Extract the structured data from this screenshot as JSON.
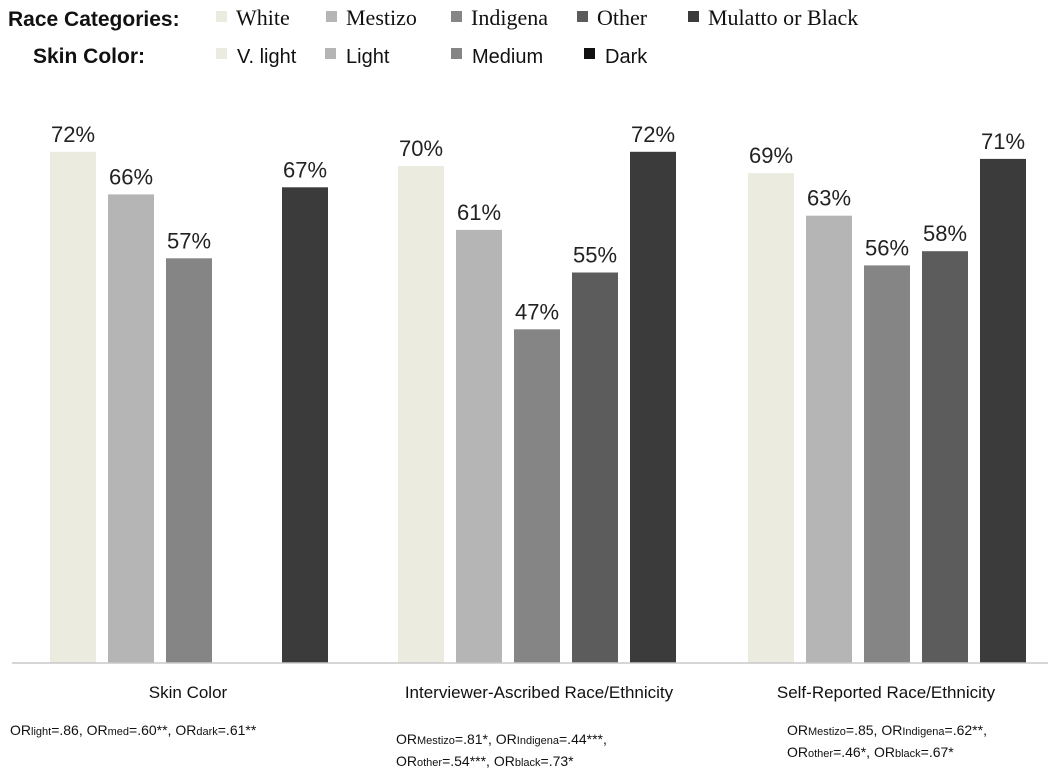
{
  "legend": {
    "race_title": "Race Categories:",
    "race_items": [
      {
        "label": "White",
        "color": "#ebebe0"
      },
      {
        "label": "Mestizo",
        "color": "#b5b5b5"
      },
      {
        "label": "Indigena",
        "color": "#858585"
      },
      {
        "label": "Other",
        "color": "#5c5c5c"
      },
      {
        "label": "Mulatto or Black",
        "color": "#3b3b3b"
      }
    ],
    "skin_title": "Skin Color:",
    "skin_items": [
      {
        "label": "V. light",
        "color": "#ebebe0"
      },
      {
        "label": "Light",
        "color": "#b5b5b5"
      },
      {
        "label": "Medium",
        "color": "#858585"
      },
      {
        "label": "Dark",
        "color": "#111111"
      }
    ]
  },
  "chart_data": {
    "type": "bar",
    "unit": "%",
    "ylim": [
      0,
      100
    ],
    "grid": false,
    "groups": [
      {
        "label": "Skin Color",
        "bars": [
          {
            "category": "V. light",
            "value": 72,
            "color": "#ebebe0"
          },
          {
            "category": "Light",
            "value": 66,
            "color": "#b5b5b5"
          },
          {
            "category": "Medium",
            "value": 57,
            "color": "#858585"
          },
          {
            "category": "Dark",
            "value": 67,
            "color": "#3b3b3b"
          }
        ],
        "note": [
          [
            {
              "t": "OR"
            },
            {
              "t": "light",
              "sub": true
            },
            {
              "t": "=.86, OR"
            },
            {
              "t": "med",
              "sub": true
            },
            {
              "t": "=.60**, OR"
            },
            {
              "t": "dark",
              "sub": true
            },
            {
              "t": "=.61**"
            }
          ]
        ]
      },
      {
        "label": "Interviewer-Ascribed Race/Ethnicity",
        "bars": [
          {
            "category": "White",
            "value": 70,
            "color": "#ebebe0"
          },
          {
            "category": "Mestizo",
            "value": 61,
            "color": "#b5b5b5"
          },
          {
            "category": "Indigena",
            "value": 47,
            "color": "#858585"
          },
          {
            "category": "Other",
            "value": 55,
            "color": "#5c5c5c"
          },
          {
            "category": "Mulatto or Black",
            "value": 72,
            "color": "#3b3b3b"
          }
        ],
        "note": [
          [
            {
              "t": "OR"
            },
            {
              "t": "Mestizo",
              "sub": true
            },
            {
              "t": "=.81*, OR"
            },
            {
              "t": "Indigena",
              "sub": true
            },
            {
              "t": "=.44***,"
            }
          ],
          [
            {
              "t": "OR"
            },
            {
              "t": "other",
              "sub": true
            },
            {
              "t": "=.54***, OR"
            },
            {
              "t": "black",
              "sub": true
            },
            {
              "t": "=.73*"
            }
          ]
        ]
      },
      {
        "label": "Self-Reported Race/Ethnicity",
        "bars": [
          {
            "category": "White",
            "value": 69,
            "color": "#ebebe0"
          },
          {
            "category": "Mestizo",
            "value": 63,
            "color": "#b5b5b5"
          },
          {
            "category": "Indigena",
            "value": 56,
            "color": "#858585"
          },
          {
            "category": "Other",
            "value": 58,
            "color": "#5c5c5c"
          },
          {
            "category": "Mulatto or Black",
            "value": 71,
            "color": "#3b3b3b"
          }
        ],
        "note": [
          [
            {
              "t": "OR"
            },
            {
              "t": "Mestizo",
              "sub": true
            },
            {
              "t": "=.85, OR"
            },
            {
              "t": "Indigena",
              "sub": true
            },
            {
              "t": "=.62**,"
            }
          ],
          [
            {
              "t": "OR"
            },
            {
              "t": "other",
              "sub": true
            },
            {
              "t": "=.46*, OR"
            },
            {
              "t": "black",
              "sub": true
            },
            {
              "t": "=.67*"
            }
          ]
        ]
      }
    ]
  }
}
